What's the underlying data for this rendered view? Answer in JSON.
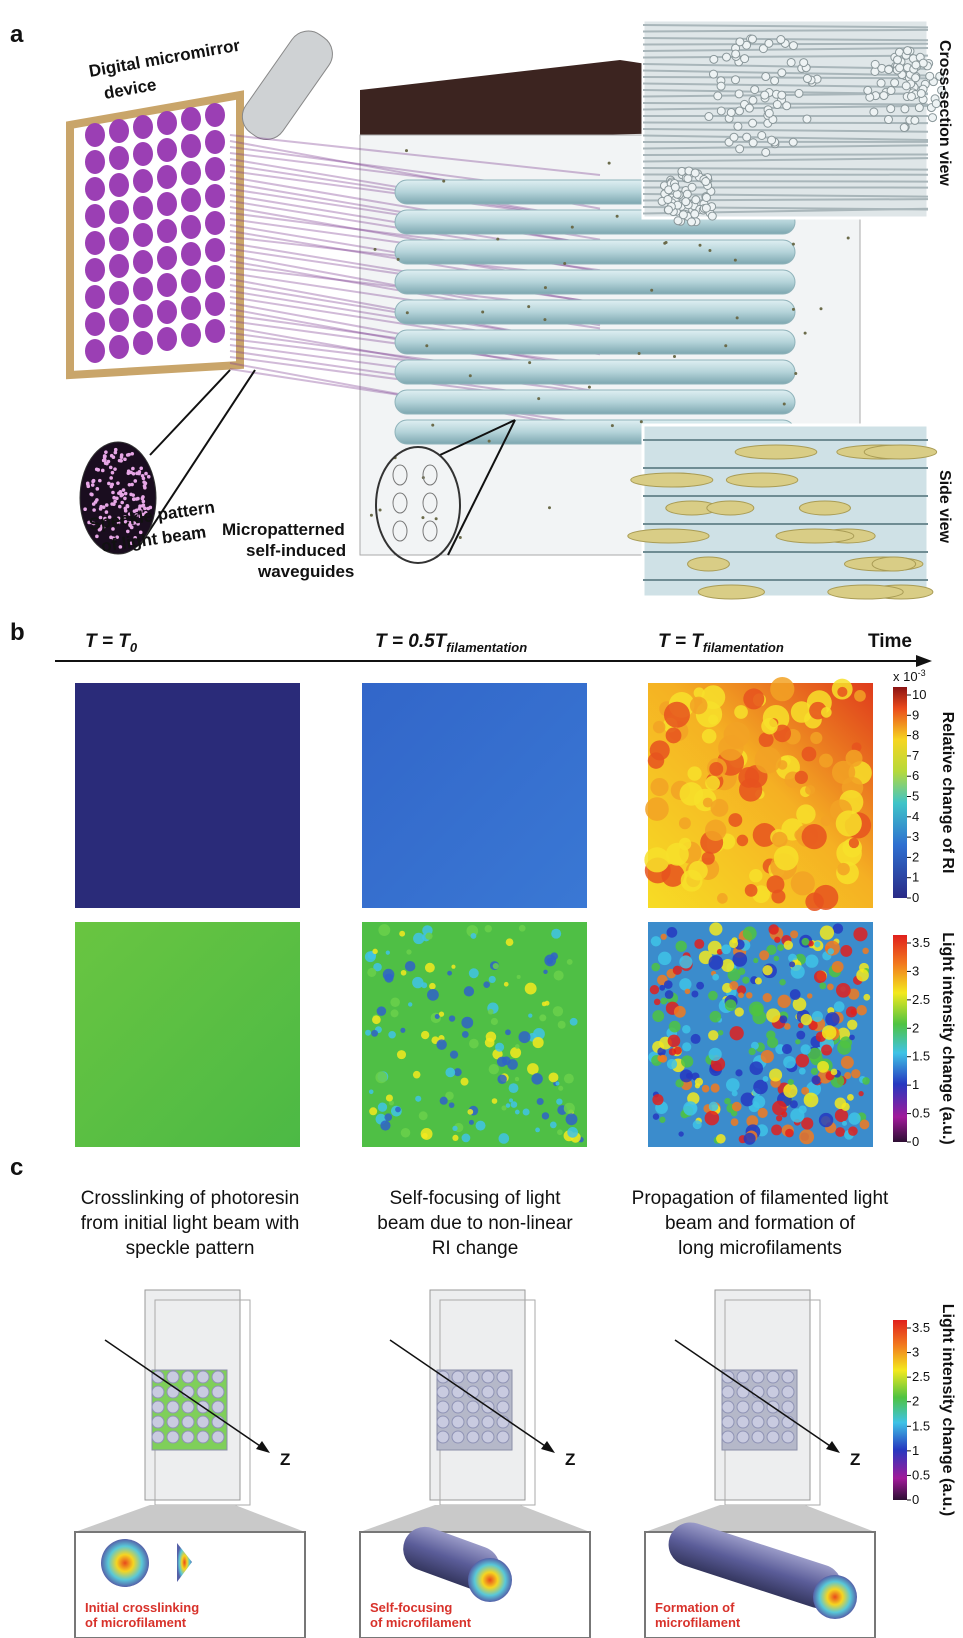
{
  "panel_a": {
    "letter": "a",
    "dmd_label": [
      "Digital micromirror",
      "device"
    ],
    "cross_section_label": "Cross-section view",
    "side_view_label": "Side view",
    "speckle_label": [
      "Speckle pattern",
      "of light beam"
    ],
    "waveguide_label": [
      "Micropatterned",
      "self-induced",
      "waveguides"
    ]
  },
  "panel_b": {
    "letter": "b",
    "times": [
      {
        "main": "T = T",
        "sub": "0"
      },
      {
        "main": "T = 0.5T",
        "sub": "filamentation"
      },
      {
        "main": "T = T",
        "sub": "filamentation"
      }
    ],
    "axis_label": "Time",
    "ri_colorbar": {
      "multiplier": {
        "base": "x 10",
        "exp": "-3"
      },
      "ticks": [
        0,
        1,
        2,
        3,
        4,
        5,
        6,
        7,
        8,
        9,
        10
      ],
      "label": "Relative change of RI"
    },
    "intensity_colorbar": {
      "ticks": [
        0,
        0.5,
        1,
        1.5,
        2,
        2.5,
        3,
        3.5
      ],
      "label": "Light intensity change (a.u.)"
    }
  },
  "panel_c": {
    "letter": "c",
    "captions": [
      [
        "Crosslinking of photoresin",
        "from initial light beam with",
        "speckle pattern"
      ],
      [
        "Self-focusing of light",
        "beam due to non-linear",
        "RI change"
      ],
      [
        "Propagation of filamented light",
        "beam and formation of",
        "long microfilaments"
      ]
    ],
    "axis_symbol": "Z",
    "insets": [
      [
        "Initial crosslinking",
        "of microfilament"
      ],
      [
        "Self-focusing",
        "of microfilament"
      ],
      [
        "Formation of",
        "microfilament"
      ]
    ],
    "colorbar": {
      "ticks": [
        0,
        0.5,
        1,
        1.5,
        2,
        2.5,
        3,
        3.5
      ],
      "label": "Light intensity change (a.u.)"
    }
  }
}
